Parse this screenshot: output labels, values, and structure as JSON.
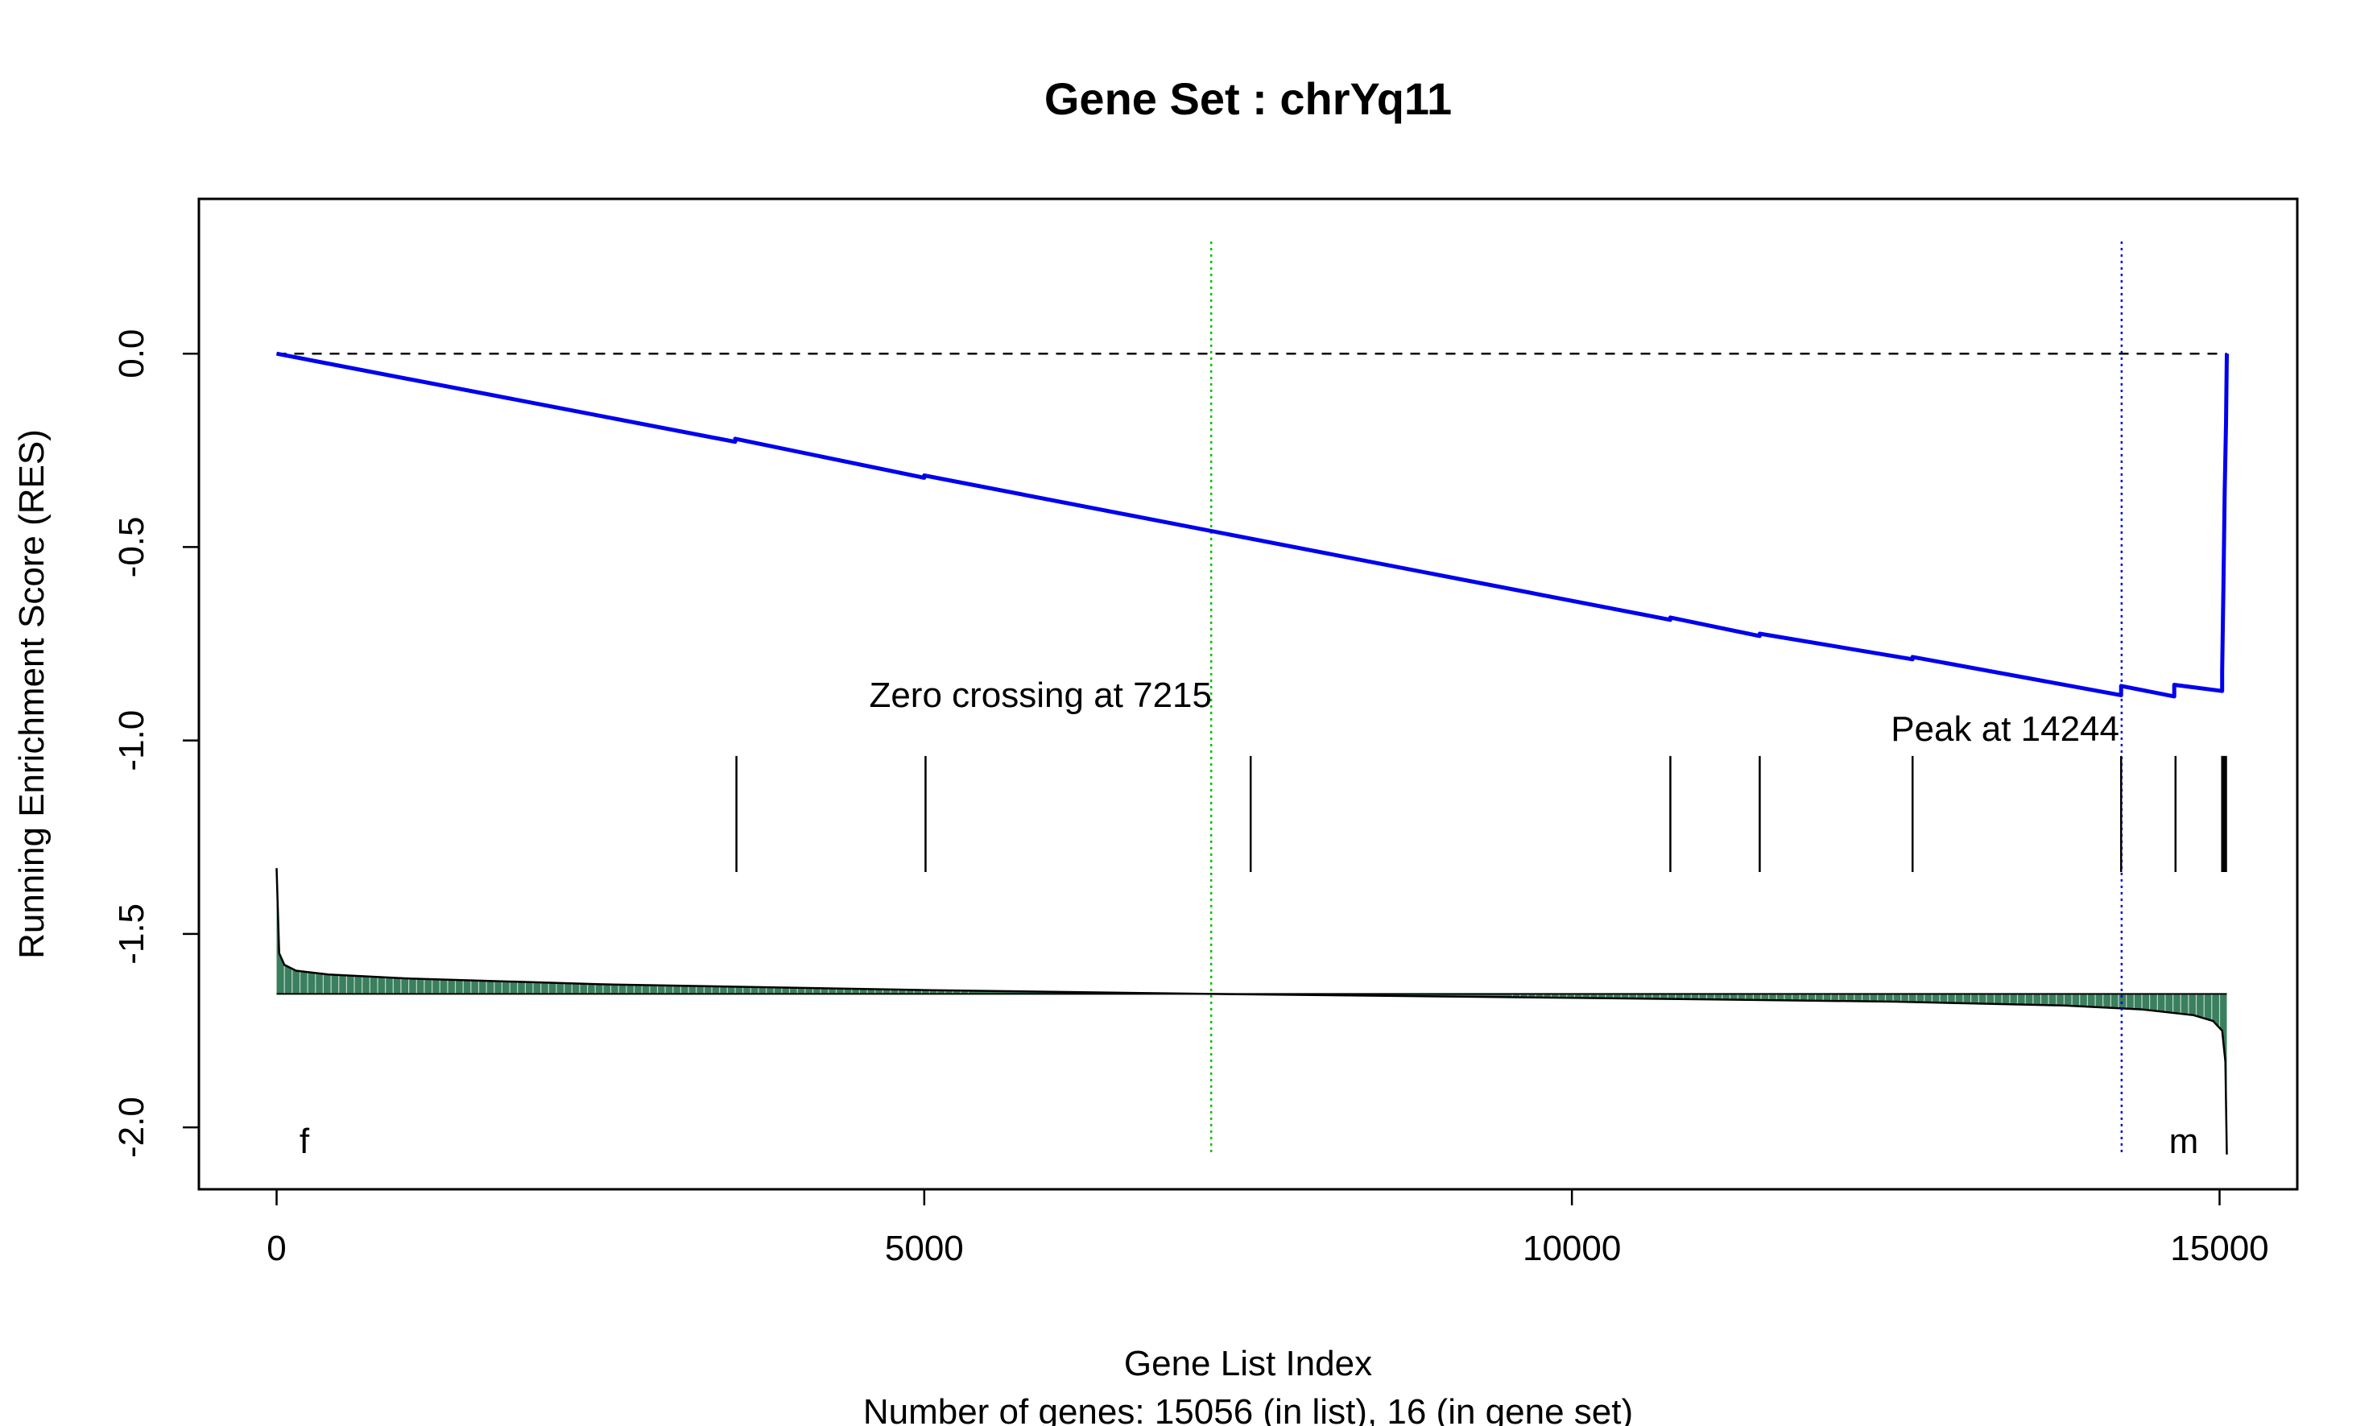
{
  "chart_data": {
    "type": "line",
    "title": "Gene Set  : chrYq11",
    "xlabel": "Gene List Index",
    "subtitle": "Number of genes: 15056 (in list), 16 (in gene set)",
    "ylabel": "Running Enrichment Score (RES)",
    "xlim": [
      -600,
      15600
    ],
    "ylim": [
      -2.16,
      0.4
    ],
    "x_ticks": [
      0,
      5000,
      10000,
      15000
    ],
    "y_ticks": [
      0.0,
      -0.5,
      -1.0,
      -1.5,
      -2.0
    ],
    "x_tick_labels": [
      "0",
      "5000",
      "10000",
      "15000"
    ],
    "y_tick_labels": [
      "0.0",
      "-0.5",
      "-1.0",
      "-1.5",
      "-2.0"
    ],
    "grid": false,
    "colors": {
      "res_line": "#0000ee",
      "zero_crossing_line": "#00c000",
      "peak_line": "#0000ee",
      "ranked_fill": "#3a7f5e",
      "ranked_stripes": "#d8e8df"
    },
    "series": [
      {
        "name": "",
        "x": [
          0,
          3540,
          3540,
          5000,
          5000,
          10760,
          10760,
          11450,
          11450,
          12630,
          12630,
          14240,
          14240,
          14650,
          14650,
          15020,
          15020,
          15030,
          15040,
          15050,
          15056
        ],
        "y": [
          0.0,
          -0.228,
          -0.22,
          -0.321,
          -0.315,
          -0.688,
          -0.682,
          -0.73,
          -0.724,
          -0.79,
          -0.784,
          -0.883,
          -0.859,
          -0.886,
          -0.856,
          -0.872,
          -0.82,
          -0.6,
          -0.35,
          -0.18,
          0.0
        ]
      }
    ],
    "hits": [
      3550,
      5010,
      7520,
      10760,
      11450,
      12630,
      14240,
      14660,
      15020,
      15030,
      15040,
      15050
    ],
    "hit_band": [
      -1.04,
      -1.34
    ],
    "ranked_metric": {
      "baseline": -1.655,
      "x": [
        0,
        20,
        60,
        150,
        400,
        1000,
        2500,
        5000,
        7215,
        10000,
        12500,
        13800,
        14400,
        14800,
        14950,
        15020,
        15045,
        15056
      ],
      "y": [
        -1.33,
        -1.55,
        -1.58,
        -1.595,
        -1.605,
        -1.615,
        -1.63,
        -1.645,
        -1.655,
        -1.665,
        -1.675,
        -1.685,
        -1.695,
        -1.71,
        -1.725,
        -1.75,
        -1.83,
        -2.07
      ]
    },
    "zero_crossing": {
      "x": 7215,
      "label": "Zero crossing at 7215",
      "y_range": [
        -2.07,
        0.29
      ]
    },
    "peak": {
      "x": 14244,
      "label": "Peak at 14244",
      "y_range": [
        -2.07,
        0.29
      ]
    },
    "corner_labels": {
      "left": "f",
      "right": "m"
    }
  }
}
